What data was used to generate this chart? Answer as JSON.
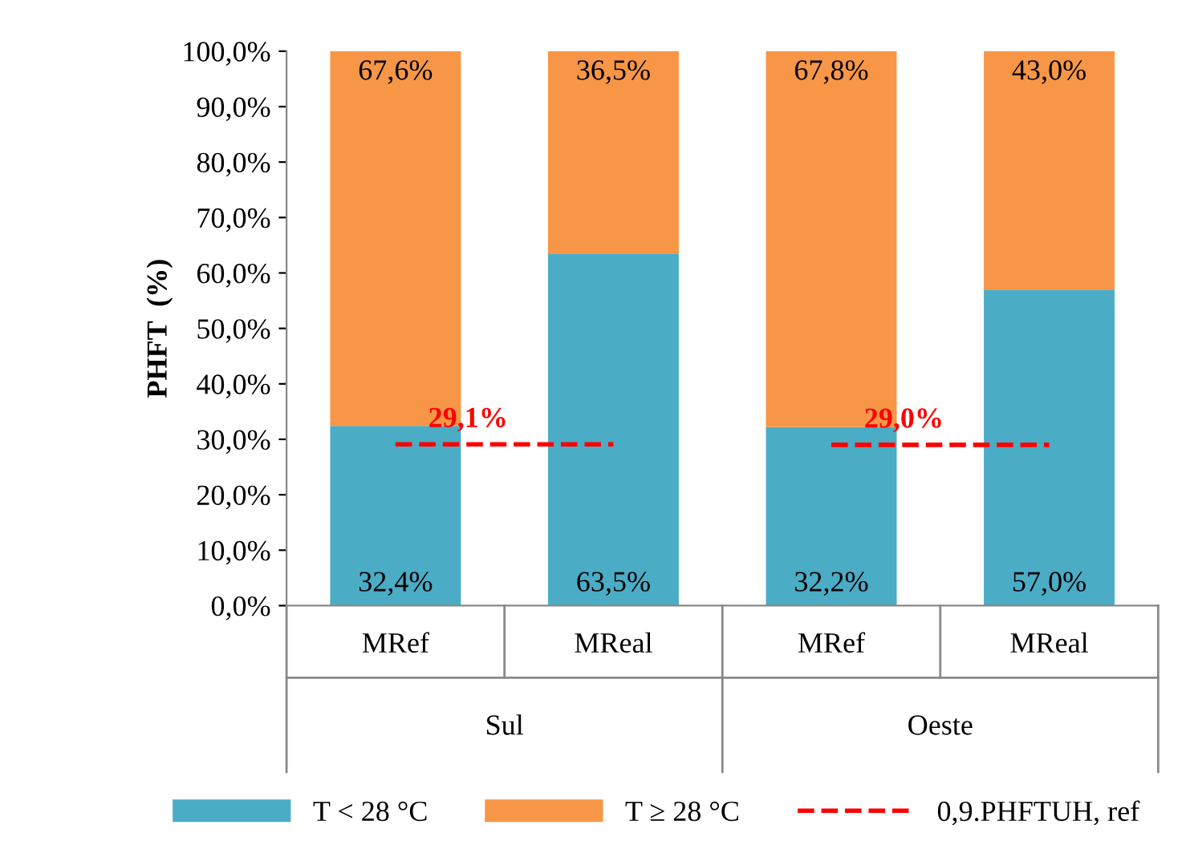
{
  "chart_data": {
    "type": "bar",
    "stacked": true,
    "ylabel": "PHFT  (%)",
    "categories": [
      "MRef",
      "MReal",
      "MRef",
      "MReal"
    ],
    "series": [
      {
        "name": "T < 28 °C",
        "color": "#4bacc6",
        "values": [
          32.4,
          63.5,
          32.2,
          57.0
        ],
        "value_labels": [
          "32,4%",
          "63,5%",
          "32,2%",
          "57,0%"
        ]
      },
      {
        "name": "T ≥ 28 °C",
        "color": "#f79646",
        "values": [
          67.6,
          36.5,
          67.8,
          43.0
        ],
        "value_labels": [
          "67,6%",
          "36,5%",
          "67,8%",
          "43,0%"
        ]
      },
      {
        "name": "0,9.PHFTUH, ref",
        "type": "line",
        "line_style": "dashed",
        "color": "#ff0000",
        "values": [
          29.1,
          29.1,
          null,
          null
        ],
        "value_labels": [
          "29,1%",
          null,
          null,
          null
        ]
      },
      {
        "type": "line",
        "line_style": "dashed",
        "color": "#ff0000",
        "values": [
          null,
          null,
          29.0,
          29.0
        ],
        "value_labels": [
          null,
          null,
          "29,0%",
          null
        ]
      }
    ],
    "ylim": [
      0,
      100
    ],
    "yticks": [
      {
        "value": 0,
        "label": "0,0%"
      },
      {
        "value": 10,
        "label": "10,0%"
      },
      {
        "value": 20,
        "label": "20,0%"
      },
      {
        "value": 30,
        "label": "30,0%"
      },
      {
        "value": 40,
        "label": "40,0%"
      },
      {
        "value": 50,
        "label": "50,0%"
      },
      {
        "value": 60,
        "label": "60,0%"
      },
      {
        "value": 70,
        "label": "70,0%"
      },
      {
        "value": 80,
        "label": "80,0%"
      },
      {
        "value": 90,
        "label": "90,0%"
      },
      {
        "value": 100,
        "label": "100,0%"
      }
    ],
    "annotations": [
      "Sul",
      "Oeste"
    ],
    "legend": "bottom",
    "grid": false
  }
}
